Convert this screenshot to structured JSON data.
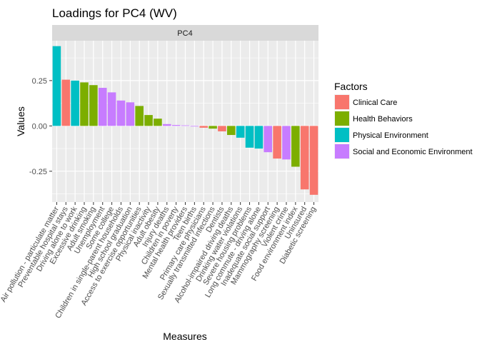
{
  "chart_data": {
    "type": "bar",
    "title": "Loadings for PC4 (WV)",
    "facet_label": "PC4",
    "xlabel": "Measures",
    "ylabel": "Values",
    "ylim": [
      -0.42,
      0.47
    ],
    "yticks": [
      0.25,
      0.0,
      -0.25
    ],
    "ytick_labels": [
      "0.25",
      "0.00",
      "-0.25"
    ],
    "grid": true,
    "legend_position": "right",
    "legend_title": "Factors",
    "factors": [
      {
        "name": "Clinical Care",
        "color": "#F8766D"
      },
      {
        "name": "Health Behaviors",
        "color": "#7CAE00"
      },
      {
        "name": "Physical Environment",
        "color": "#00BFC4"
      },
      {
        "name": "Social and Economic Environment",
        "color": "#C77CFF"
      }
    ],
    "categories": [
      "Air pollution - particulate matter",
      "Preventable hospital stays",
      "Driving alone to work",
      "Excessive drinking",
      "Adult smoking",
      "Unemployment",
      "Some college",
      "Children in single-parent households",
      "High school graduation",
      "Access to exercise opportunities",
      "Physical inactivity",
      "Adult obesity",
      "Injury deaths",
      "Children in poverty",
      "Mental health providers",
      "Teen births",
      "Primary care physicians",
      "Sexually transmitted infections",
      "Dentists",
      "Alcohol-impaired driving deaths",
      "Drinking water violations",
      "Severe housing problems",
      "Long commute - driving alone",
      "Inadequate social support",
      "Mammography screening",
      "Violent crime",
      "Food environment index",
      "Uninsured",
      "Diabetic screening"
    ],
    "values": [
      0.44,
      0.255,
      0.25,
      0.24,
      0.225,
      0.21,
      0.185,
      0.14,
      0.13,
      0.11,
      0.06,
      0.04,
      0.01,
      0.005,
      0.003,
      0.0,
      -0.01,
      -0.015,
      -0.03,
      -0.05,
      -0.065,
      -0.12,
      -0.125,
      -0.145,
      -0.18,
      -0.185,
      -0.225,
      -0.35,
      -0.38
    ],
    "factor_index": [
      2,
      0,
      2,
      1,
      1,
      3,
      3,
      3,
      3,
      1,
      1,
      1,
      3,
      3,
      3,
      3,
      0,
      1,
      0,
      1,
      2,
      2,
      2,
      3,
      0,
      3,
      1,
      0,
      0
    ]
  }
}
